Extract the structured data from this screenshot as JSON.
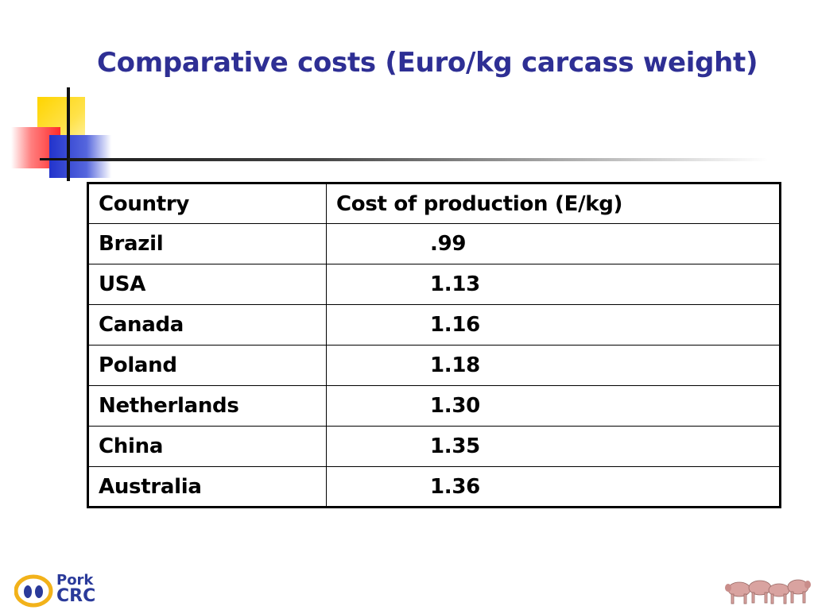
{
  "slide": {
    "title": "Comparative costs (Euro/kg carcass weight)"
  },
  "table": {
    "headers": [
      "Country",
      "Cost of production (E/kg)"
    ],
    "rows": [
      {
        "country": "Brazil",
        "cost": ".99"
      },
      {
        "country": "USA",
        "cost": "1.13"
      },
      {
        "country": "Canada",
        "cost": "1.16"
      },
      {
        "country": "Poland",
        "cost": "1.18"
      },
      {
        "country": "Netherlands",
        "cost": "1.30"
      },
      {
        "country": "China",
        "cost": "1.35"
      },
      {
        "country": "Australia",
        "cost": "1.36"
      }
    ]
  },
  "logo": {
    "line1": "Pork",
    "line2": "CRC"
  },
  "colors": {
    "title": "#2e2f94",
    "accent_yellow": "#ffd400",
    "accent_red": "#ff2a2a",
    "accent_blue": "#2233cc",
    "logo_ring": "#f2b21a"
  },
  "icons": [
    "pork-crc-logo-icon",
    "pigs-illustration-icon"
  ]
}
